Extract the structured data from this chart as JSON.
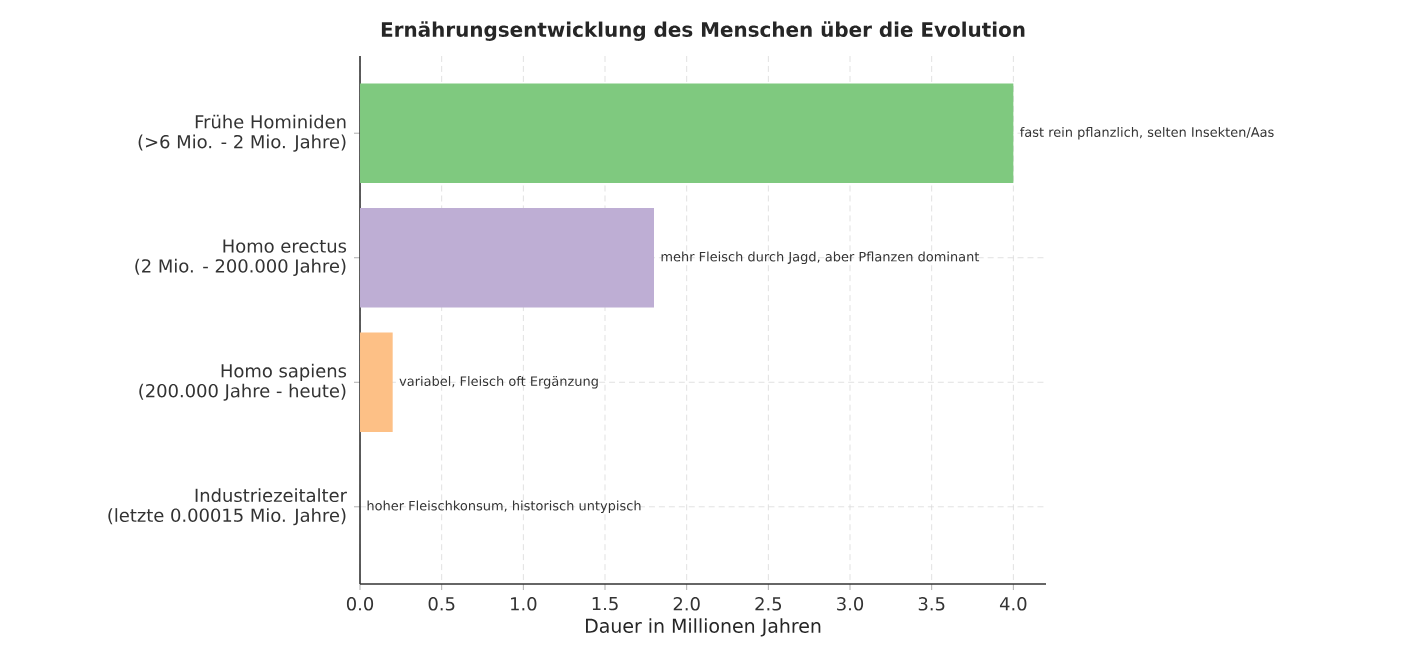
{
  "chart_data": {
    "type": "bar",
    "orientation": "horizontal",
    "title": "Ernährungsentwicklung des Menschen über die Evolution",
    "xlabel": "Dauer in Millionen Jahren",
    "categories": [
      "Frühe Hominiden\n(>6 Mio. - 2 Mio. Jahre)",
      "Homo erectus\n(2 Mio. - 200.000 Jahre)",
      "Homo sapiens\n(200.000 Jahre - heute)",
      "Industriezeitalter\n(letzte 0.00015 Mio. Jahre)"
    ],
    "values": [
      4.0,
      1.8,
      0.2,
      0.0
    ],
    "colors": [
      "#7fc97f",
      "#beaed4",
      "#fdc086",
      "#ffff99"
    ],
    "xlim": [
      0,
      4.2
    ],
    "xticks": [
      {
        "value": 0,
        "label": "0.0"
      },
      0.5,
      {
        "value": 1,
        "label": "1.0"
      },
      1.5,
      {
        "value": 2,
        "label": "2.0"
      },
      2.5,
      {
        "value": 3,
        "label": "3.0"
      },
      3.5,
      {
        "value": 4,
        "label": "4.0"
      }
    ],
    "grid": true,
    "annotations": [
      {
        "text": "fast rein pflanzlich, selten Insekten/Aas",
        "x": 4.0,
        "y": "Frühe Hominiden\n(>6 Mio. - 2 Mio. Jahre)"
      },
      {
        "text": "mehr Fleisch durch Jagd, aber Pflanzen dominant",
        "x": 1.8,
        "y": "Homo erectus\n(2 Mio. - 200.000 Jahre)"
      },
      {
        "text": "variabel, Fleisch oft Ergänzung",
        "x": 0.2,
        "y": "Homo sapiens\n(200.000 Jahre - heute)"
      },
      {
        "text": "hoher Fleischkonsum, historisch untypisch",
        "x": 0.0,
        "y": "Industriezeitalter\n(letzte 0.00015 Mio. Jahre)"
      }
    ]
  }
}
